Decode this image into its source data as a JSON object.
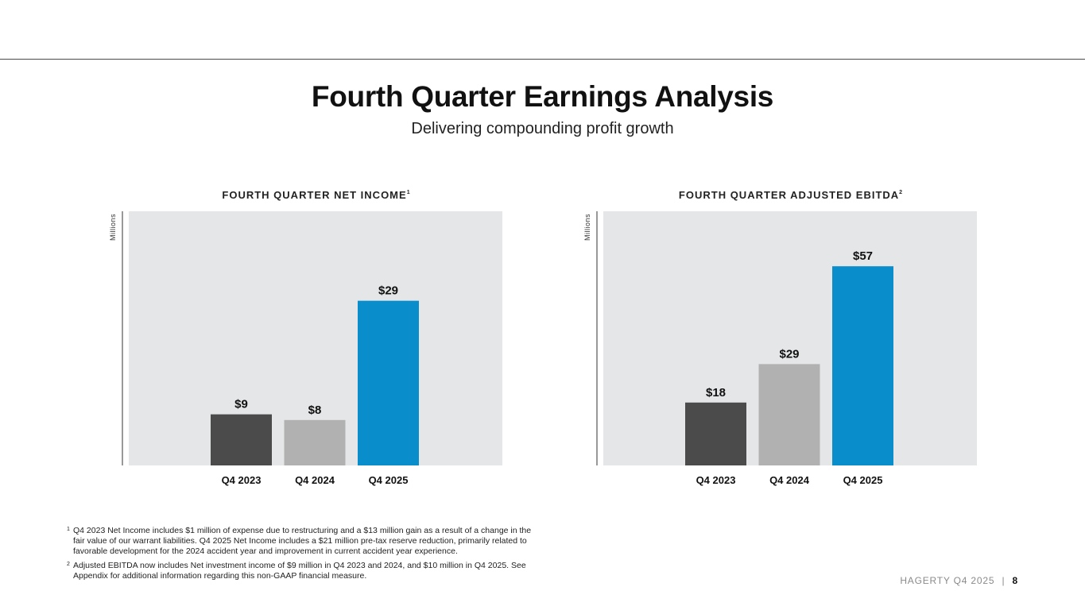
{
  "page": {
    "title": "Fourth Quarter Earnings Analysis",
    "subtitle": "Delivering compounding profit growth"
  },
  "colors": {
    "panel_background": "#e5e6e8",
    "bar_q4_2023": "#4b4b4b",
    "bar_q4_2024": "#b1b1b1",
    "bar_q4_2025": "#0a8dcb",
    "axis_line": "#333333"
  },
  "chart_data": [
    {
      "type": "bar",
      "title": "FOURTH QUARTER NET INCOME",
      "title_note": "1",
      "ylabel": "Millions",
      "xlabel": "",
      "categories": [
        "Q4 2023",
        "Q4 2024",
        "Q4 2025"
      ],
      "values": [
        9,
        8,
        29
      ],
      "data_labels": [
        "$9",
        "$8",
        "$29"
      ],
      "ylim": [
        0,
        40
      ],
      "grid": false,
      "legend": "none"
    },
    {
      "type": "bar",
      "title": "FOURTH QUARTER ADJUSTED EBITDA",
      "title_note": "2",
      "ylabel": "Millions",
      "xlabel": "",
      "categories": [
        "Q4 2023",
        "Q4 2024",
        "Q4 2025"
      ],
      "values": [
        18,
        29,
        57
      ],
      "data_labels": [
        "$18",
        "$29",
        "$57"
      ],
      "ylim": [
        0,
        65
      ],
      "grid": false,
      "legend": "none"
    }
  ],
  "footnotes": [
    {
      "mark": "1",
      "text": "Q4 2023 Net Income includes $1 million of expense due to restructuring and a $13 million gain as a result of a change in the fair value of our warrant liabilities. Q4 2025 Net Income includes a $21 million pre-tax reserve reduction, primarily related to favorable development for the 2024 accident year and improvement in current accident year experience."
    },
    {
      "mark": "2",
      "text": "Adjusted EBITDA now includes Net investment income of $9 million in Q4 2023 and 2024, and $10 million in Q4 2025. See Appendix for additional information regarding this non-GAAP financial measure."
    }
  ],
  "footer": {
    "brand": "HAGERTY",
    "period": "Q4 2025",
    "separator": "|",
    "page_number": "8"
  }
}
